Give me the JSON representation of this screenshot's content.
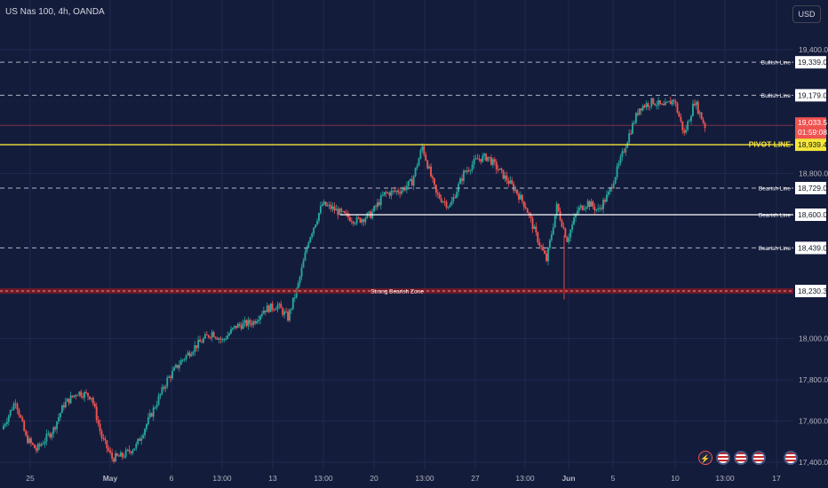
{
  "header": {
    "symbol_label": "US Nas 100, 4h, OANDA",
    "currency": "USD"
  },
  "colors": {
    "background": "#141c3c",
    "grid": "#1f2950",
    "up": "#26a69a",
    "down": "#ef5350",
    "pivot": "#f5e63a",
    "zone": "#b71c1c",
    "white_line": "#ffffff",
    "axis_text": "#b2b5be"
  },
  "y_axis": {
    "ticks": [
      {
        "value": 19400,
        "label": "19,400.0"
      },
      {
        "value": 18800,
        "label": "18,800.0"
      },
      {
        "value": 18000,
        "label": "18,000.0"
      },
      {
        "value": 17800,
        "label": "17,800.0"
      },
      {
        "value": 17600,
        "label": "17,600.0"
      },
      {
        "value": 17400,
        "label": "17,400.0"
      }
    ]
  },
  "x_axis": {
    "ticks": [
      "25",
      "May",
      "6",
      "13:00",
      "13",
      "13:00",
      "20",
      "13:00",
      "27",
      "13:00",
      "Jun",
      "5",
      "10",
      "13:00",
      "17"
    ]
  },
  "levels": [
    {
      "name": "Bullish Line",
      "value": 19339,
      "label": "19,339.0",
      "style": "dashed"
    },
    {
      "name": "Bullish Line",
      "value": 19179,
      "label": "19,179.0",
      "style": "dashed"
    },
    {
      "name": "PIVOT LINE",
      "value": 18939.4,
      "label": "18,939.4",
      "style": "pivot"
    },
    {
      "name": "Bearish Line",
      "value": 18729,
      "label": "18,729.0",
      "style": "dashed"
    },
    {
      "name": "Bearish Line",
      "value": 18600,
      "label": "18,600.0",
      "style": "solid-white"
    },
    {
      "name": "Bearish Line",
      "value": 18439,
      "label": "18,439.0",
      "style": "dashed"
    },
    {
      "name": "Strong Bearish Zone",
      "value": 18230.3,
      "label": "18,230.3",
      "style": "zone"
    }
  ],
  "last_price": {
    "value": 19033.5,
    "label": "19,033.5",
    "countdown": "01:59:08"
  },
  "toolbar_icons": [
    "flash-icon",
    "us-flag-icon",
    "us-flag-icon",
    "us-flag-icon",
    "us-flag-icon"
  ],
  "chart_data": {
    "type": "candlestick",
    "title": "",
    "ylim": [
      17380,
      19520
    ],
    "key_closes": [
      {
        "x": "25",
        "close": 17700
      },
      {
        "x": "May",
        "close": 17420
      },
      {
        "x": "6",
        "close": 17850
      },
      {
        "x": "13",
        "close": 18100
      },
      {
        "x": "20",
        "close": 18640
      },
      {
        "x": "27",
        "close": 18820
      },
      {
        "x": "Jun",
        "close": 18260
      },
      {
        "x": "5",
        "close": 18640
      },
      {
        "x": "10",
        "close": 19150
      }
    ]
  }
}
